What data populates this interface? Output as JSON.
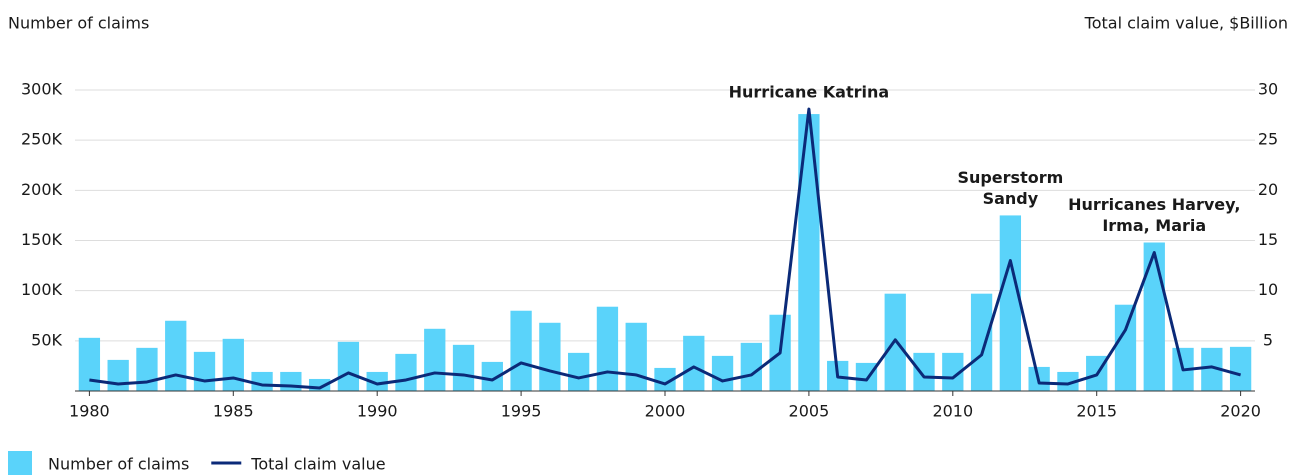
{
  "chart_data": {
    "type": "bar_line",
    "y_label": "Number of claims",
    "y2_label": "Total claim value, $Billion",
    "x": [
      1980,
      1981,
      1982,
      1983,
      1984,
      1985,
      1986,
      1987,
      1988,
      1989,
      1990,
      1991,
      1992,
      1993,
      1994,
      1995,
      1996,
      1997,
      1998,
      1999,
      2000,
      2001,
      2002,
      2003,
      2004,
      2005,
      2006,
      2007,
      2008,
      2009,
      2010,
      2011,
      2012,
      2013,
      2014,
      2015,
      2016,
      2017,
      2018,
      2019,
      2020
    ],
    "xlim": [
      1979.5,
      2020.5
    ],
    "xticks": [
      1980,
      1985,
      1990,
      1995,
      2000,
      2005,
      2010,
      2015,
      2020
    ],
    "ylim": [
      0,
      300000
    ],
    "yticks": [
      {
        "value": 50000,
        "label": "50K"
      },
      {
        "value": 100000,
        "label": "100K"
      },
      {
        "value": 150000,
        "label": "150K"
      },
      {
        "value": 200000,
        "label": "200K"
      },
      {
        "value": 250000,
        "label": "250K"
      },
      {
        "value": 300000,
        "label": "300K"
      }
    ],
    "y2lim": [
      0,
      30
    ],
    "y2ticks": [
      5,
      10,
      15,
      20,
      25,
      30
    ],
    "grid": true,
    "series": [
      {
        "name": "Number of claims",
        "type": "bar",
        "color": "#5ad3fa",
        "values": [
          53000,
          31000,
          43000,
          70000,
          39000,
          52000,
          19000,
          19000,
          12000,
          49000,
          19000,
          37000,
          62000,
          46000,
          29000,
          80000,
          68000,
          38000,
          84000,
          68000,
          23000,
          55000,
          35000,
          48000,
          76000,
          276000,
          30000,
          28000,
          97000,
          38000,
          38000,
          97000,
          175000,
          24000,
          19000,
          35000,
          86000,
          148000,
          43000,
          43000,
          44000
        ]
      },
      {
        "name": "Total claim value",
        "type": "line",
        "axis": "y2",
        "color": "#0b2a78",
        "values": [
          1.1,
          0.7,
          0.9,
          1.6,
          1.0,
          1.3,
          0.6,
          0.5,
          0.3,
          1.8,
          0.7,
          1.1,
          1.8,
          1.6,
          1.1,
          2.8,
          2.0,
          1.3,
          1.9,
          1.6,
          0.7,
          2.4,
          1.0,
          1.6,
          3.8,
          28.1,
          1.4,
          1.1,
          5.1,
          1.4,
          1.3,
          3.6,
          13.0,
          0.8,
          0.7,
          1.6,
          6.1,
          13.8,
          2.1,
          2.4,
          1.6
        ]
      }
    ],
    "annotations": [
      {
        "x": 2005,
        "lines": [
          "Hurricane Katrina"
        ]
      },
      {
        "x": 2012,
        "lines": [
          "Superstorm",
          "Sandy"
        ]
      },
      {
        "x": 2017,
        "lines": [
          "Hurricanes Harvey,",
          "Irma, Maria"
        ]
      }
    ]
  }
}
